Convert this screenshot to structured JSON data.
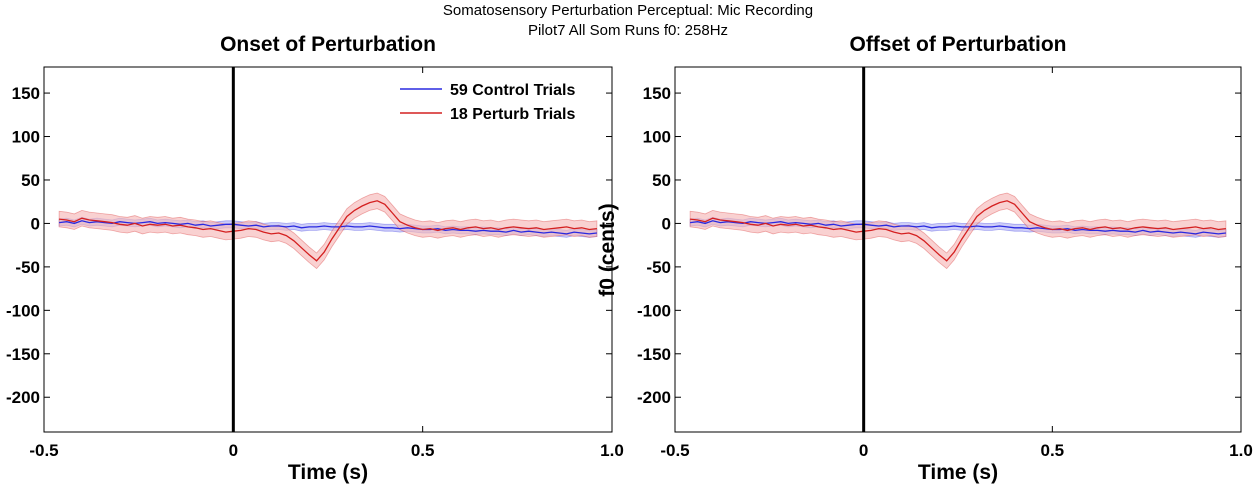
{
  "figure": {
    "suptitle_line1": "Somatosensory Perturbation Perceptual: Mic Recording",
    "suptitle_line2": "Pilot7 All Som Runs   f0: 258Hz"
  },
  "colors": {
    "control_line": "#2a2ae0",
    "control_band": "#b4b4f5",
    "perturb_line": "#d42020",
    "perturb_band": "#f6b8b8",
    "event_line": "#000000"
  },
  "chart_data": [
    {
      "type": "line",
      "title": "Onset of Perturbation",
      "xlabel": "Time (s)",
      "ylabel": "",
      "xlim": [
        -0.5,
        1.0
      ],
      "ylim": [
        -240,
        180
      ],
      "xticks": [
        -0.5,
        0,
        0.5,
        1.0
      ],
      "xtick_labels": [
        "-0.5",
        "0",
        "0.5",
        "1.0"
      ],
      "yticks": [
        150,
        100,
        50,
        0,
        -50,
        -100,
        -150,
        -200
      ],
      "ytick_labels": [
        "150",
        "100",
        "50",
        "0",
        "-50",
        "-100",
        "-150",
        "-200"
      ],
      "event_line_x": 0,
      "legend": "top-right",
      "grid": false,
      "x": [
        -0.46,
        -0.44,
        -0.42,
        -0.4,
        -0.38,
        -0.36,
        -0.34,
        -0.32,
        -0.3,
        -0.28,
        -0.26,
        -0.24,
        -0.22,
        -0.2,
        -0.18,
        -0.16,
        -0.14,
        -0.12,
        -0.1,
        -0.08,
        -0.06,
        -0.04,
        -0.02,
        0,
        0.02,
        0.04,
        0.06,
        0.08,
        0.1,
        0.12,
        0.14,
        0.16,
        0.18,
        0.2,
        0.22,
        0.24,
        0.26,
        0.28,
        0.3,
        0.32,
        0.34,
        0.36,
        0.38,
        0.4,
        0.42,
        0.44,
        0.46,
        0.48,
        0.5,
        0.52,
        0.54,
        0.56,
        0.58,
        0.6,
        0.62,
        0.64,
        0.66,
        0.68,
        0.7,
        0.72,
        0.74,
        0.76,
        0.78,
        0.8,
        0.82,
        0.84,
        0.86,
        0.88,
        0.9,
        0.92,
        0.94,
        0.96
      ],
      "series": [
        {
          "name": "59 Control Trials",
          "color": "#2a2ae0",
          "values": [
            1,
            2,
            0,
            3,
            1,
            2,
            1,
            0,
            2,
            1,
            0,
            1,
            2,
            0,
            1,
            0,
            -1,
            0,
            -2,
            -1,
            -3,
            -2,
            -1,
            -1,
            -2,
            -3,
            -2,
            -4,
            -3,
            -3,
            -4,
            -3,
            -5,
            -4,
            -4,
            -3,
            -4,
            -4,
            -3,
            -4,
            -4,
            -3,
            -4,
            -5,
            -5,
            -6,
            -5,
            -6,
            -7,
            -7,
            -6,
            -8,
            -7,
            -8,
            -8,
            -9,
            -8,
            -9,
            -9,
            -10,
            -8,
            -10,
            -9,
            -10,
            -11,
            -10,
            -11,
            -12,
            -10,
            -11,
            -12,
            -11
          ],
          "band": 4
        },
        {
          "name": "18 Perturb Trials",
          "color": "#d42020",
          "values": [
            5,
            4,
            2,
            6,
            4,
            3,
            2,
            1,
            -1,
            -2,
            0,
            -3,
            -1,
            -2,
            -1,
            -3,
            -2,
            -4,
            -5,
            -7,
            -6,
            -8,
            -10,
            -9,
            -8,
            -6,
            -7,
            -10,
            -12,
            -11,
            -14,
            -20,
            -28,
            -36,
            -43,
            -33,
            -18,
            -5,
            8,
            15,
            20,
            24,
            26,
            22,
            12,
            2,
            -2,
            -5,
            -7,
            -6,
            -8,
            -6,
            -5,
            -7,
            -5,
            -4,
            -6,
            -5,
            -7,
            -5,
            -4,
            -5,
            -6,
            -5,
            -7,
            -6,
            -5,
            -4,
            -6,
            -5,
            -7,
            -6
          ],
          "band": 9
        }
      ]
    },
    {
      "type": "line",
      "title": "Offset of Perturbation",
      "xlabel": "Time (s)",
      "ylabel": "f0 (cents)",
      "xlim": [
        -0.5,
        1.0
      ],
      "ylim": [
        -240,
        180
      ],
      "xticks": [
        -0.5,
        0,
        0.5,
        1.0
      ],
      "xtick_labels": [
        "-0.5",
        "0",
        "0.5",
        "1.0"
      ],
      "yticks": [
        150,
        100,
        50,
        0,
        -50,
        -100,
        -150,
        -200
      ],
      "ytick_labels": [
        "150",
        "100",
        "50",
        "0",
        "-50",
        "-100",
        "-150",
        "-200"
      ],
      "event_line_x": 0,
      "grid": false,
      "x": [
        -0.46,
        -0.44,
        -0.42,
        -0.4,
        -0.38,
        -0.36,
        -0.34,
        -0.32,
        -0.3,
        -0.28,
        -0.26,
        -0.24,
        -0.22,
        -0.2,
        -0.18,
        -0.16,
        -0.14,
        -0.12,
        -0.1,
        -0.08,
        -0.06,
        -0.04,
        -0.02,
        0,
        0.02,
        0.04,
        0.06,
        0.08,
        0.1,
        0.12,
        0.14,
        0.16,
        0.18,
        0.2,
        0.22,
        0.24,
        0.26,
        0.28,
        0.3,
        0.32,
        0.34,
        0.36,
        0.38,
        0.4,
        0.42,
        0.44,
        0.46,
        0.48,
        0.5,
        0.52,
        0.54,
        0.56,
        0.58,
        0.6,
        0.62,
        0.64,
        0.66,
        0.68,
        0.7,
        0.72,
        0.74,
        0.76,
        0.78,
        0.8,
        0.82,
        0.84,
        0.86,
        0.88,
        0.9,
        0.92,
        0.94,
        0.96
      ],
      "series": [
        {
          "color": "#2a2ae0",
          "values": [
            1,
            2,
            0,
            3,
            1,
            2,
            1,
            0,
            2,
            1,
            0,
            1,
            2,
            0,
            1,
            0,
            -1,
            0,
            -2,
            -1,
            -3,
            -2,
            -1,
            -1,
            -2,
            -3,
            -2,
            -4,
            -3,
            -3,
            -4,
            -3,
            -5,
            -4,
            -4,
            -3,
            -4,
            -4,
            -3,
            -4,
            -4,
            -3,
            -4,
            -5,
            -5,
            -6,
            -5,
            -6,
            -7,
            -7,
            -6,
            -8,
            -7,
            -8,
            -8,
            -9,
            -8,
            -9,
            -9,
            -10,
            -8,
            -10,
            -9,
            -10,
            -11,
            -10,
            -11,
            -12,
            -10,
            -11,
            -12,
            -11
          ],
          "band": 4
        },
        {
          "color": "#d42020",
          "values": [
            5,
            4,
            2,
            6,
            4,
            3,
            2,
            1,
            -1,
            -2,
            0,
            -3,
            -1,
            -2,
            -1,
            -3,
            -2,
            -4,
            -5,
            -7,
            -6,
            -8,
            -10,
            -9,
            -8,
            -6,
            -7,
            -10,
            -12,
            -11,
            -14,
            -20,
            -28,
            -36,
            -43,
            -33,
            -18,
            -5,
            8,
            15,
            20,
            24,
            26,
            22,
            12,
            2,
            -2,
            -5,
            -7,
            -6,
            -8,
            -6,
            -5,
            -7,
            -5,
            -4,
            -6,
            -5,
            -7,
            -5,
            -4,
            -5,
            -6,
            -5,
            -7,
            -6,
            -5,
            -4,
            -6,
            -5,
            -7,
            -6
          ],
          "band": 9
        }
      ]
    }
  ]
}
